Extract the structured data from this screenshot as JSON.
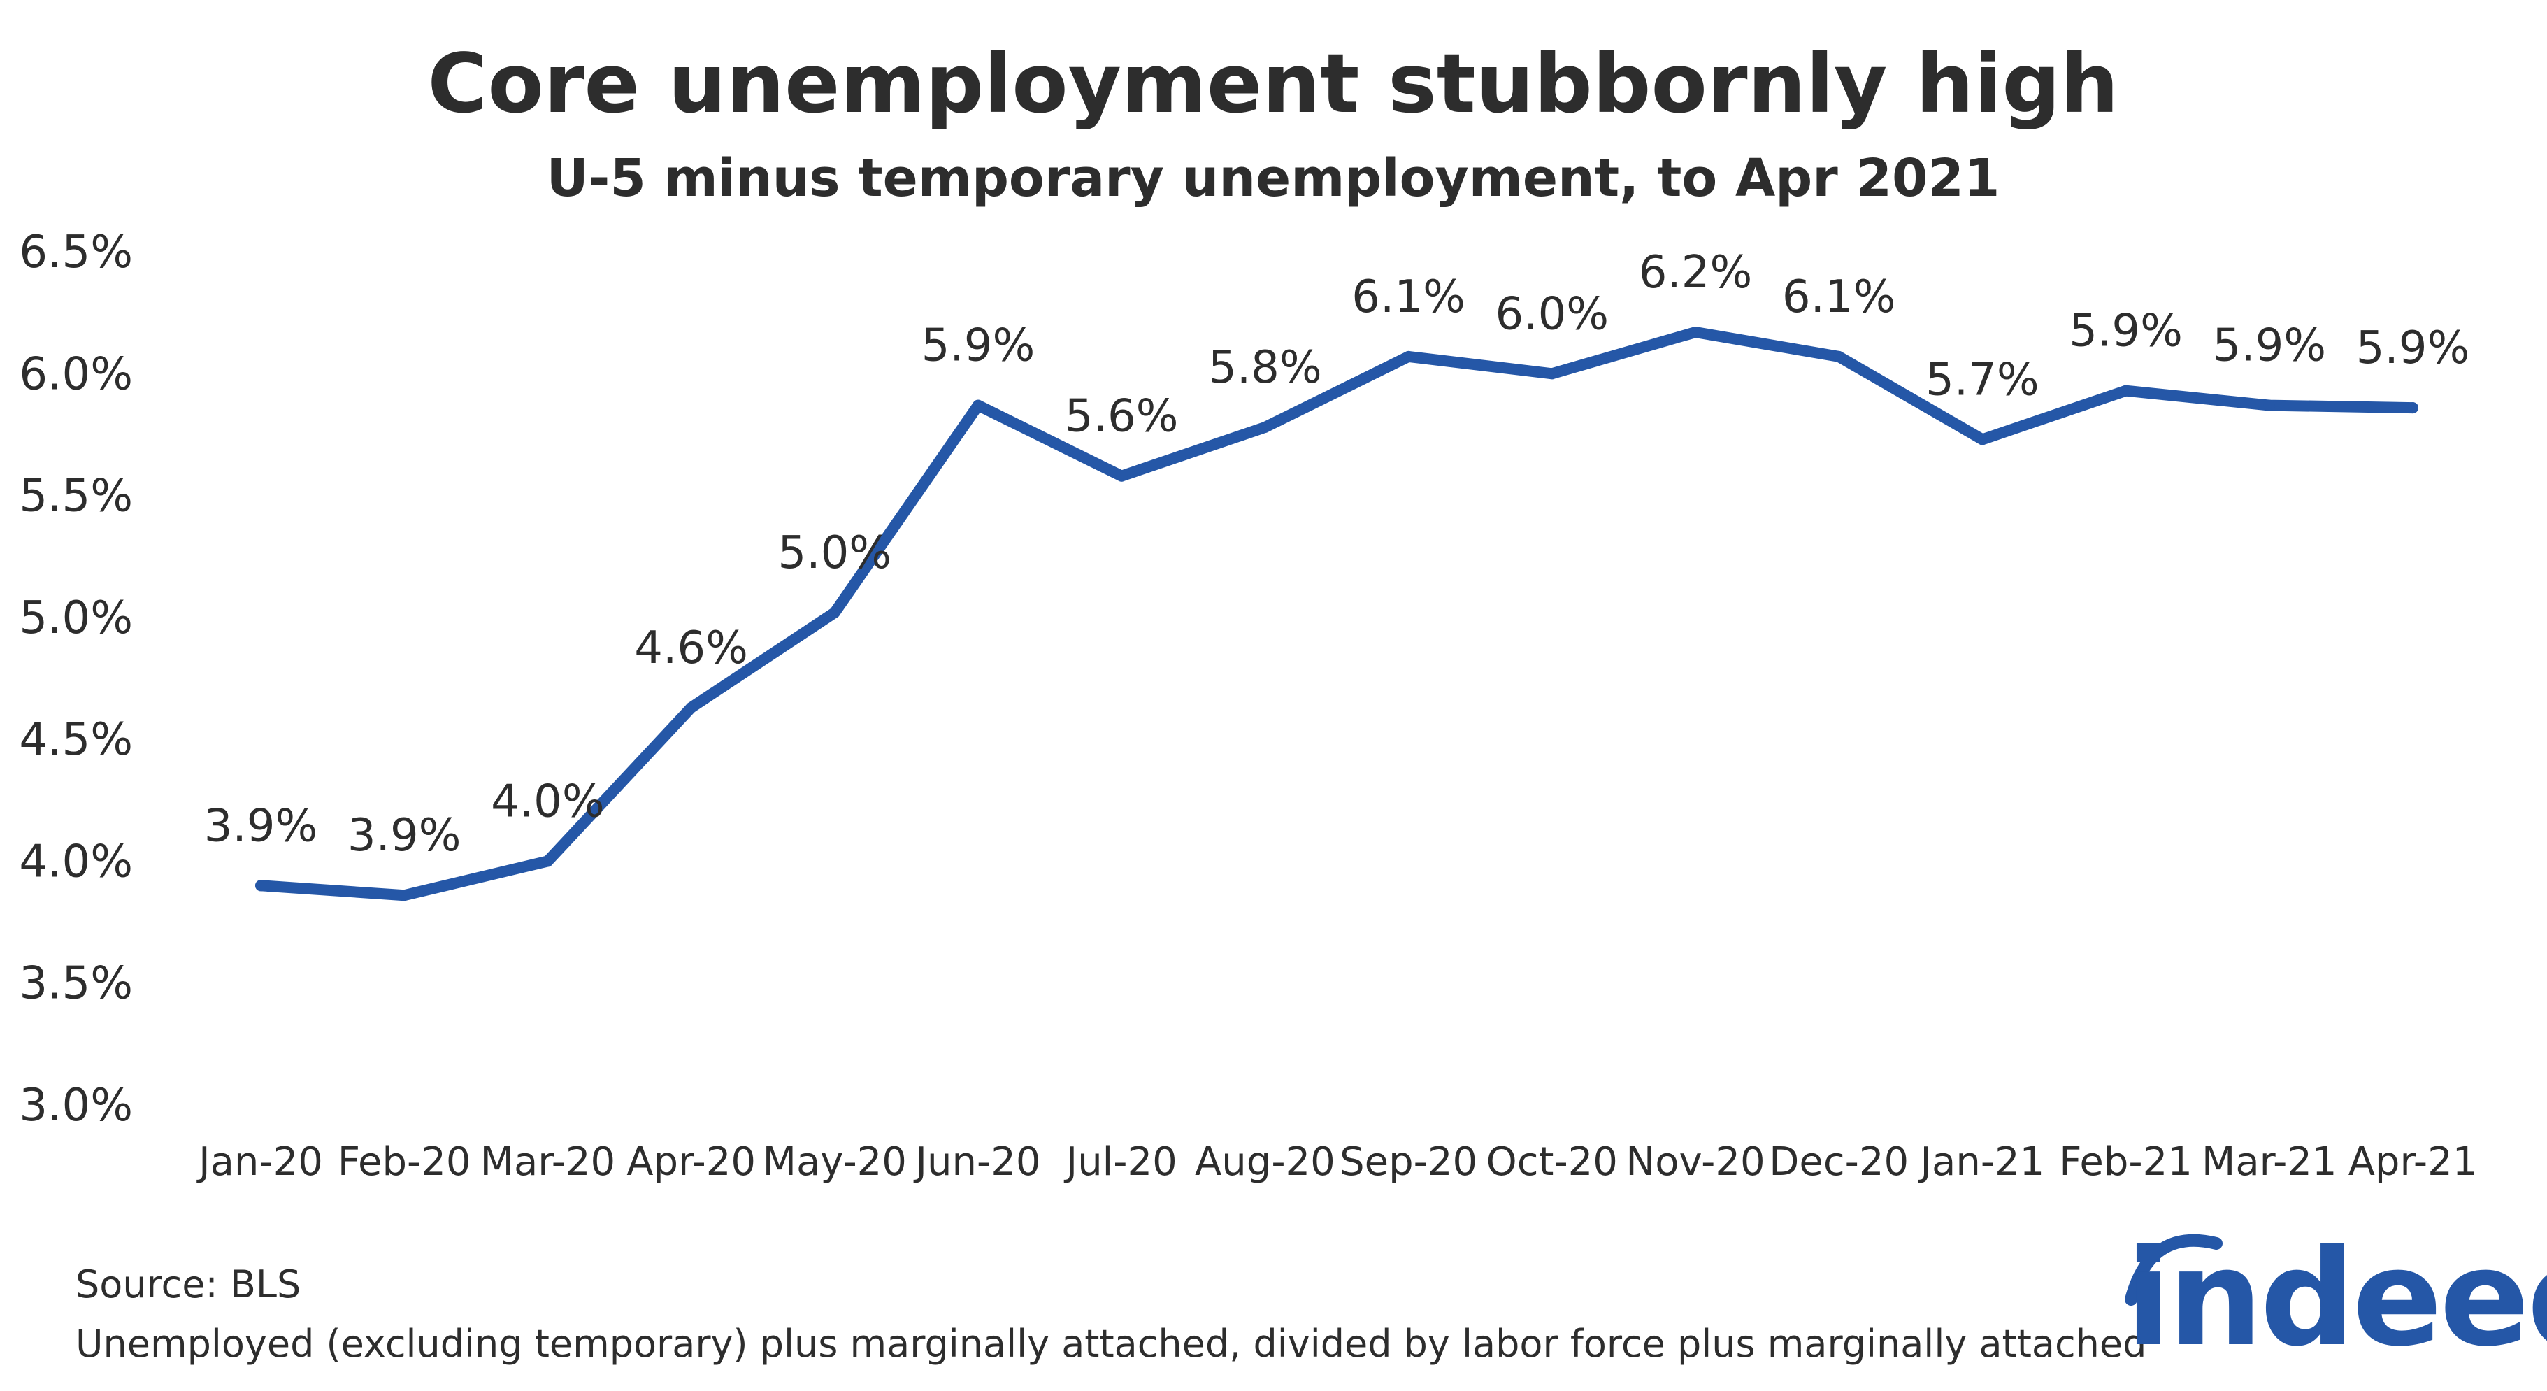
{
  "chart_data": {
    "type": "line",
    "title": "Core unemployment stubbornly high",
    "subtitle": "U-5 minus temporary unemployment, to Apr 2021",
    "categories": [
      "Jan-20",
      "Feb-20",
      "Mar-20",
      "Apr-20",
      "May-20",
      "Jun-20",
      "Jul-20",
      "Aug-20",
      "Sep-20",
      "Oct-20",
      "Nov-20",
      "Dec-20",
      "Jan-21",
      "Feb-21",
      "Mar-21",
      "Apr-21"
    ],
    "series": [
      {
        "values": [
          3.9,
          3.86,
          4.0,
          4.63,
          5.02,
          5.87,
          5.58,
          5.78,
          6.07,
          6.0,
          6.17,
          6.07,
          5.73,
          5.93,
          5.87,
          5.86
        ],
        "labels": [
          "3.9%",
          "3.9%",
          "4.0%",
          "4.6%",
          "5.0%",
          "5.9%",
          "5.6%",
          "5.8%",
          "6.1%",
          "6.0%",
          "6.2%",
          "6.1%",
          "5.7%",
          "5.9%",
          "5.9%",
          "5.9%"
        ],
        "color": "#2557a7"
      }
    ],
    "y_ticks": [
      "3.0%",
      "3.5%",
      "4.0%",
      "4.5%",
      "5.0%",
      "5.5%",
      "6.0%",
      "6.5%"
    ],
    "y_tick_values": [
      3.0,
      3.5,
      4.0,
      4.5,
      5.0,
      5.5,
      6.0,
      6.5
    ],
    "ylim": [
      3.0,
      6.5
    ],
    "xlabel": "",
    "ylabel": "",
    "grid": false,
    "legend": "none"
  },
  "footer": {
    "source": "Source: BLS",
    "note": "Unemployed (excluding temporary) plus marginally attached, divided by labor force plus marginally attached"
  },
  "logo": {
    "text": "indeed",
    "color": "#2557a7"
  }
}
